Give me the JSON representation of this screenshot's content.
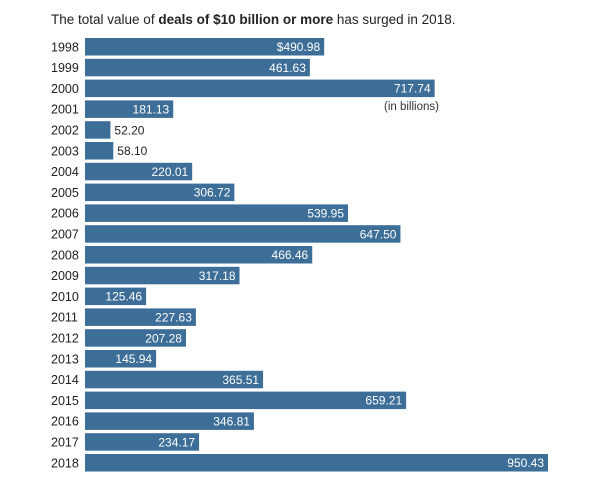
{
  "chart_data": {
    "type": "bar",
    "orientation": "horizontal",
    "title": {
      "prefix": "The total value of ",
      "bold": "deals of $10 billion or more",
      "suffix": " has surged in 2018."
    },
    "unit_note": "(in billions)",
    "color": "#3d6e98",
    "grid": false,
    "categories": [
      "1998",
      "1999",
      "2000",
      "2001",
      "2002",
      "2003",
      "2004",
      "2005",
      "2006",
      "2007",
      "2008",
      "2009",
      "2010",
      "2011",
      "2012",
      "2013",
      "2014",
      "2015",
      "2016",
      "2017",
      "2018"
    ],
    "values": [
      490.98,
      461.63,
      717.74,
      181.13,
      52.2,
      58.1,
      220.01,
      306.72,
      539.95,
      647.5,
      466.46,
      317.18,
      125.46,
      227.63,
      207.28,
      145.94,
      365.51,
      659.21,
      346.81,
      234.17,
      950.43
    ],
    "labels": [
      "$490.98",
      "461.63",
      "717.74",
      "181.13",
      "52.20",
      "58.10",
      "220.01",
      "306.72",
      "539.95",
      "647.50",
      "466.46",
      "317.18",
      "125.46",
      "227.63",
      "207.28",
      "145.94",
      "365.51",
      "659.21",
      "346.81",
      "234.17",
      "950.43"
    ],
    "xlim": [
      0,
      950.43
    ]
  }
}
